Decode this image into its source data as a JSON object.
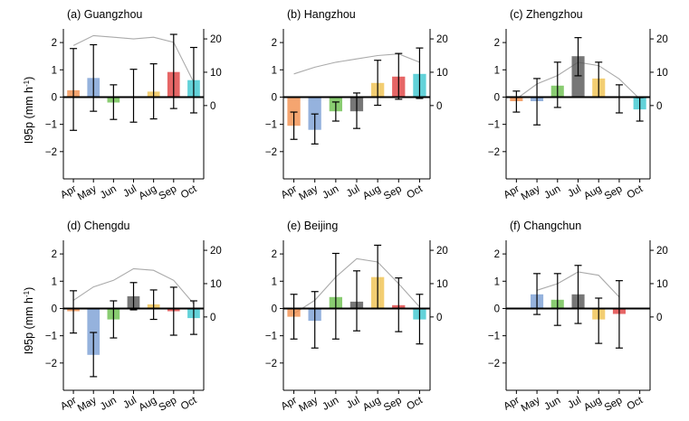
{
  "figure": {
    "ylabel": "I95p (mm h",
    "ylabel_sup": "-1",
    "ylabel_close": ")"
  },
  "chart_data": [
    {
      "type": "bar",
      "title": "(a) Guangzhou",
      "categories": [
        "Apr",
        "May",
        "Jun",
        "Jul",
        "Aug",
        "Sep",
        "Oct"
      ],
      "values": [
        0.25,
        0.7,
        -0.2,
        0.0,
        0.2,
        0.92,
        0.62
      ],
      "err_low": [
        -1.22,
        -0.52,
        -0.82,
        -0.92,
        -0.8,
        -0.42,
        -0.58
      ],
      "err_high": [
        1.78,
        1.92,
        0.45,
        1.02,
        1.22,
        2.3,
        1.82
      ],
      "line": [
        18,
        21,
        20.5,
        20,
        20.5,
        19,
        7
      ],
      "ylim": [
        -3,
        2.5
      ],
      "y2lim": [
        -22,
        23
      ],
      "yticks": [
        -2,
        -1,
        0,
        1,
        2
      ],
      "y2ticks": [
        0,
        10,
        20
      ],
      "colors": [
        "#f28e4c",
        "#7a9fd4",
        "#6cbf4e",
        "#555555",
        "#f0c24f",
        "#e04040",
        "#3cc7d0"
      ]
    },
    {
      "type": "bar",
      "title": "(b) Hangzhou",
      "categories": [
        "Apr",
        "May",
        "Jun",
        "Jul",
        "Aug",
        "Sep",
        "Oct"
      ],
      "values": [
        -1.05,
        -1.2,
        -0.52,
        -0.52,
        0.52,
        0.75,
        0.85
      ],
      "err_low": [
        -1.55,
        -1.72,
        -0.88,
        -1.15,
        -0.3,
        -0.08,
        -0.05
      ],
      "err_high": [
        -0.55,
        -0.62,
        -0.18,
        0.15,
        1.35,
        1.6,
        1.8
      ],
      "line": [
        9.5,
        11.5,
        13,
        14,
        15,
        15.5,
        13
      ],
      "ylim": [
        -3,
        2.5
      ],
      "y2lim": [
        -22,
        23
      ],
      "yticks": [
        -2,
        -1,
        0,
        1,
        2
      ],
      "y2ticks": [
        0,
        10,
        20
      ],
      "colors": [
        "#f28e4c",
        "#7a9fd4",
        "#6cbf4e",
        "#555555",
        "#f0c24f",
        "#e04040",
        "#3cc7d0"
      ]
    },
    {
      "type": "bar",
      "title": "(c) Zhengzhou",
      "categories": [
        "Apr",
        "May",
        "Jun",
        "Jul",
        "Aug",
        "Sep",
        "Oct"
      ],
      "values": [
        -0.15,
        -0.15,
        0.42,
        1.5,
        0.68,
        0.0,
        -0.45
      ],
      "err_low": [
        -0.55,
        -1.02,
        -0.38,
        0.78,
        0.0,
        -0.58,
        -0.88
      ],
      "err_high": [
        0.22,
        0.68,
        1.28,
        2.18,
        1.28,
        0.45,
        -0.02
      ],
      "line": [
        2,
        6.5,
        9,
        13,
        12,
        8,
        2
      ],
      "ylim": [
        -3,
        2.5
      ],
      "y2lim": [
        -22,
        23
      ],
      "yticks": [
        -2,
        -1,
        0,
        1,
        2
      ],
      "y2ticks": [
        0,
        10,
        20
      ],
      "colors": [
        "#f28e4c",
        "#7a9fd4",
        "#6cbf4e",
        "#555555",
        "#f0c24f",
        "#e04040",
        "#3cc7d0"
      ]
    },
    {
      "type": "bar",
      "title": "(d) Chengdu",
      "categories": [
        "Apr",
        "May",
        "Jun",
        "Jul",
        "Aug",
        "Sep",
        "Oct"
      ],
      "values": [
        -0.1,
        -1.7,
        -0.4,
        0.45,
        0.15,
        -0.1,
        -0.35
      ],
      "err_low": [
        -0.9,
        -2.5,
        -1.08,
        -0.05,
        -0.4,
        -0.98,
        -0.95
      ],
      "err_high": [
        0.65,
        -0.88,
        0.28,
        0.95,
        0.68,
        0.78,
        0.28
      ],
      "line": [
        5,
        9,
        11,
        14.5,
        14,
        11,
        4
      ],
      "ylim": [
        -3,
        2.5
      ],
      "y2lim": [
        -22,
        23
      ],
      "yticks": [
        -2,
        -1,
        0,
        1,
        2
      ],
      "y2ticks": [
        0,
        10,
        20
      ],
      "colors": [
        "#f28e4c",
        "#7a9fd4",
        "#6cbf4e",
        "#555555",
        "#f0c24f",
        "#e04040",
        "#3cc7d0"
      ]
    },
    {
      "type": "bar",
      "title": "(e) Beijing",
      "categories": [
        "Apr",
        "May",
        "Jun",
        "Jul",
        "Aug",
        "Sep",
        "Oct"
      ],
      "values": [
        -0.3,
        -0.45,
        0.42,
        0.25,
        1.15,
        0.12,
        -0.4
      ],
      "err_low": [
        -1.12,
        -1.45,
        -1.12,
        -0.82,
        0.0,
        -0.85,
        -1.3
      ],
      "err_high": [
        0.52,
        0.62,
        2.02,
        1.38,
        2.32,
        1.12,
        0.52
      ],
      "line": [
        1,
        5,
        12,
        17.5,
        16.5,
        10,
        3
      ],
      "ylim": [
        -3,
        2.5
      ],
      "y2lim": [
        -22,
        23
      ],
      "yticks": [
        -2,
        -1,
        0,
        1,
        2
      ],
      "y2ticks": [
        0,
        10,
        20
      ],
      "colors": [
        "#f28e4c",
        "#7a9fd4",
        "#6cbf4e",
        "#555555",
        "#f0c24f",
        "#e04040",
        "#3cc7d0"
      ]
    },
    {
      "type": "bar",
      "title": "(f) Changchun",
      "categories": [
        "Apr",
        "May",
        "Jun",
        "Jul",
        "Aug",
        "Sep",
        "Oct"
      ],
      "values": [
        null,
        0.52,
        0.32,
        0.52,
        -0.4,
        -0.2,
        null
      ],
      "err_low": [
        null,
        -0.22,
        -0.62,
        -0.55,
        -1.28,
        -1.45,
        null
      ],
      "err_high": [
        null,
        1.28,
        1.28,
        1.58,
        0.38,
        1.02,
        null
      ],
      "line": [
        null,
        8,
        10,
        13.5,
        12.5,
        6,
        null
      ],
      "ylim": [
        -3,
        2.5
      ],
      "y2lim": [
        -22,
        23
      ],
      "yticks": [
        -2,
        -1,
        0,
        1,
        2
      ],
      "y2ticks": [
        0,
        10,
        20
      ],
      "colors": [
        "#f28e4c",
        "#7a9fd4",
        "#6cbf4e",
        "#555555",
        "#f0c24f",
        "#e04040",
        "#3cc7d0"
      ]
    }
  ]
}
